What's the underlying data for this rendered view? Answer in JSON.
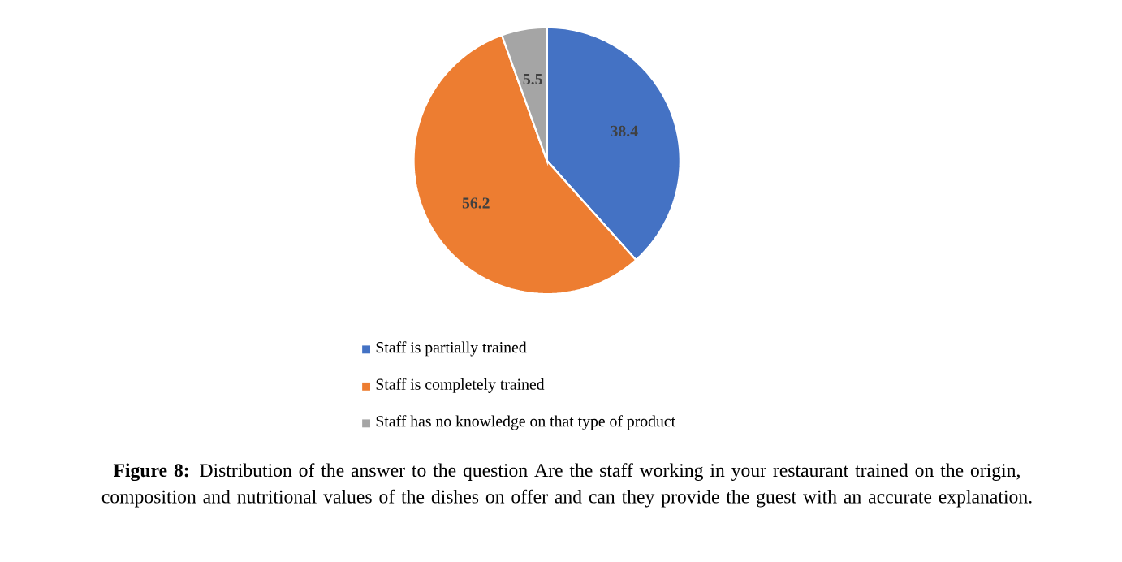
{
  "chart_data": {
    "type": "pie",
    "categories": [
      "Staff is partially trained",
      "Staff is completely trained",
      "Staff has no knowledge on that type of product"
    ],
    "values": [
      38.4,
      56.2,
      5.5
    ],
    "colors": [
      "#4472c4",
      "#ed7d31",
      "#a5a5a5"
    ],
    "data_labels": true,
    "legend": "bottom",
    "annotations": [
      "**Figure 8:** Distribution of the answer to the question Are the staff working in your restaurant trained on the origin, composition and nutritional values of the dishes on offer and can they provide the guest with an accurate explanation."
    ]
  }
}
